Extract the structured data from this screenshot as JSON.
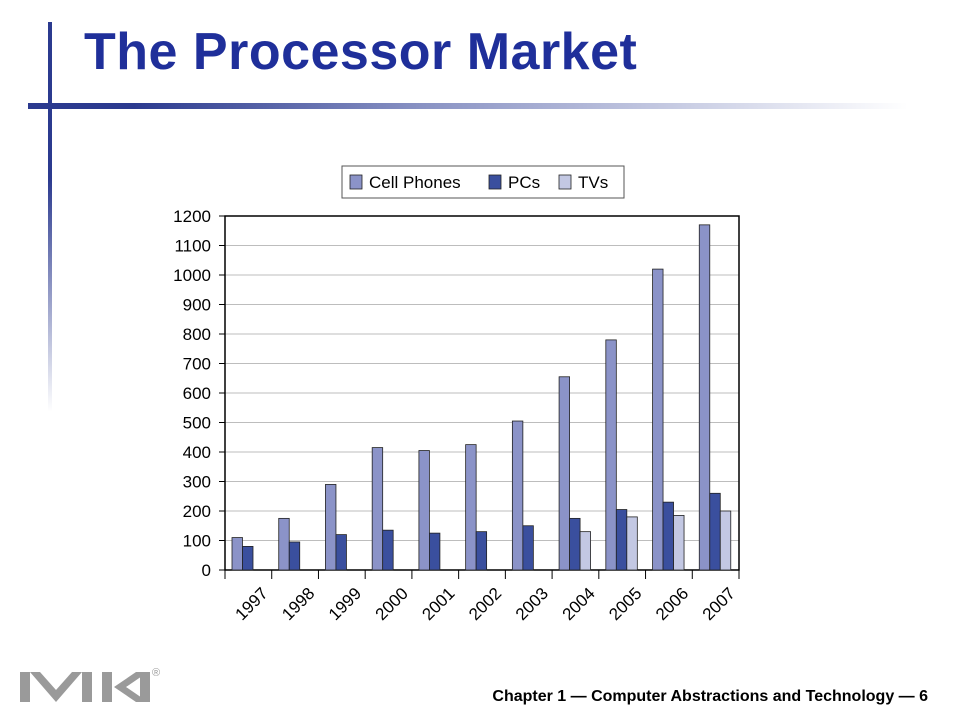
{
  "slide": {
    "title": "The Processor Market",
    "footer": "Chapter 1 — Computer Abstractions and Technology — 6",
    "accent_color": "#1f2f9a"
  },
  "logo": {
    "icon": "mk-publisher-logo",
    "mark": "®"
  },
  "chart_data": {
    "type": "bar",
    "categories": [
      "1997",
      "1998",
      "1999",
      "2000",
      "2001",
      "2002",
      "2003",
      "2004",
      "2005",
      "2006",
      "2007"
    ],
    "series": [
      {
        "name": "Cell Phones",
        "color": "#8b93c8",
        "values": [
          110,
          175,
          290,
          415,
          405,
          425,
          505,
          655,
          780,
          1020,
          1170
        ]
      },
      {
        "name": "PCs",
        "color": "#3a4f9e",
        "values": [
          80,
          95,
          120,
          135,
          125,
          130,
          150,
          175,
          205,
          230,
          260
        ]
      },
      {
        "name": "TVs",
        "color": "#c3c8e3",
        "values": [
          null,
          null,
          null,
          null,
          null,
          null,
          null,
          130,
          180,
          185,
          200
        ]
      }
    ],
    "yticks": [
      0,
      100,
      200,
      300,
      400,
      500,
      600,
      700,
      800,
      900,
      1000,
      1100,
      1200
    ],
    "ylim": [
      0,
      1200
    ],
    "grid": true,
    "legend": "top"
  }
}
